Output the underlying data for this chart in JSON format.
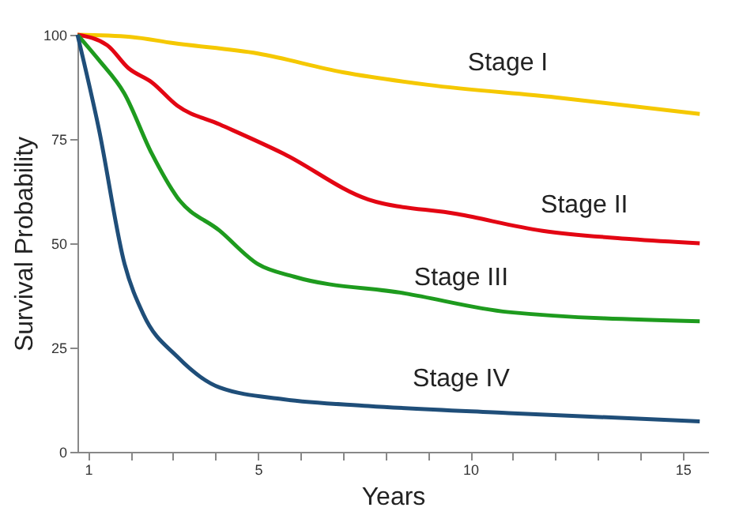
{
  "chart_data": {
    "type": "line",
    "xlabel": "Years",
    "ylabel": "Survival Probability",
    "xlim": [
      0.75,
      15.6
    ],
    "ylim": [
      0,
      100
    ],
    "xticks": [
      1,
      {
        "value": 2,
        "label": null
      },
      {
        "value": 3,
        "label": null
      },
      {
        "value": 4,
        "label": null
      },
      5,
      {
        "value": 6,
        "label": null
      },
      {
        "value": 7,
        "label": null
      },
      {
        "value": 8,
        "label": null
      },
      {
        "value": 9,
        "label": null
      },
      10,
      {
        "value": 11,
        "label": null
      },
      {
        "value": 12,
        "label": null
      },
      {
        "value": 13,
        "label": null
      },
      {
        "value": 14,
        "label": null
      },
      15
    ],
    "yticks": [
      0,
      25,
      50,
      75,
      100
    ],
    "grid": false,
    "legend": false,
    "series": [
      {
        "name": "Stage I",
        "color": "#f5c800",
        "x": [
          0.75,
          2,
          3,
          5,
          7,
          9,
          12,
          15.4
        ],
        "values": [
          100,
          99.5,
          98,
          95.5,
          91,
          88,
          85,
          81
        ]
      },
      {
        "name": "Stage II",
        "color": "#e30613",
        "x": [
          0.75,
          1.45,
          1.95,
          2.5,
          3.1,
          4.1,
          5.6,
          7.6,
          9.7,
          11.7,
          13.8,
          15.4
        ],
        "values": [
          100,
          97.5,
          92,
          88.6,
          83,
          78.5,
          71.5,
          60.5,
          57,
          53,
          51,
          50
        ]
      },
      {
        "name": "Stage III",
        "color": "#1e9b1e",
        "x": [
          0.75,
          1.25,
          1.85,
          2.5,
          3.1,
          4.1,
          5,
          5.85,
          8.45,
          10.9,
          15.4
        ],
        "values": [
          100,
          94,
          86,
          71.5,
          61,
          53,
          45,
          42,
          38,
          33.5,
          31.3
        ]
      },
      {
        "name": "Stage IV",
        "color": "#1f4e79",
        "x": [
          0.75,
          1.25,
          1.86,
          2.3,
          3.1,
          4.1,
          5.6,
          7.6,
          10.9,
          15.4
        ],
        "values": [
          100,
          77.6,
          45,
          33,
          22.8,
          15.4,
          12.6,
          11,
          9.3,
          7.3
        ]
      }
    ]
  }
}
